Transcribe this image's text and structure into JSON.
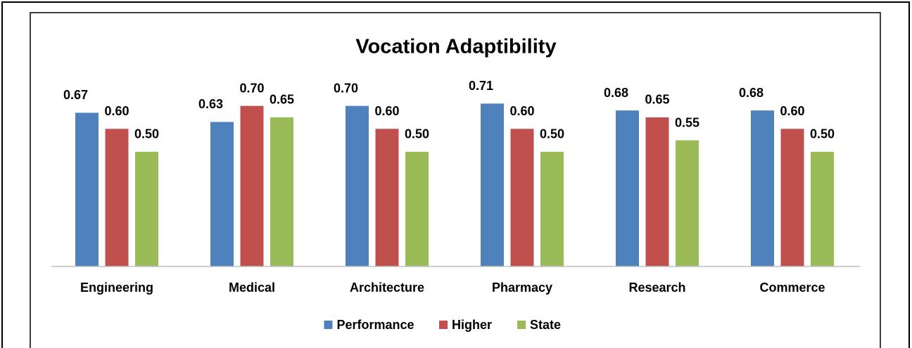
{
  "chart_data": {
    "type": "bar",
    "title": "Vocation Adaptibility",
    "categories": [
      "Engineering",
      "Medical",
      "Architecture",
      "Pharmacy",
      "Research",
      "Commerce"
    ],
    "series": [
      {
        "name": "Performance",
        "color": "#4f81bd",
        "values": [
          0.67,
          0.63,
          0.7,
          0.71,
          0.68,
          0.68
        ],
        "value_labels": [
          "0.67",
          "0.63",
          "0.70",
          "0.71",
          "0.68",
          "0.68"
        ]
      },
      {
        "name": "Higher",
        "color": "#c0504d",
        "values": [
          0.6,
          0.7,
          0.6,
          0.6,
          0.65,
          0.6
        ],
        "value_labels": [
          "0.60",
          "0.70",
          "0.60",
          "0.60",
          "0.65",
          "0.60"
        ]
      },
      {
        "name": "State",
        "color": "#9bbb59",
        "values": [
          0.5,
          0.65,
          0.5,
          0.5,
          0.55,
          0.5
        ],
        "value_labels": [
          "0.50",
          "0.65",
          "0.50",
          "0.50",
          "0.55",
          "0.50"
        ]
      }
    ],
    "ylim": [
      0,
      0.8
    ],
    "legend": "bottom"
  }
}
